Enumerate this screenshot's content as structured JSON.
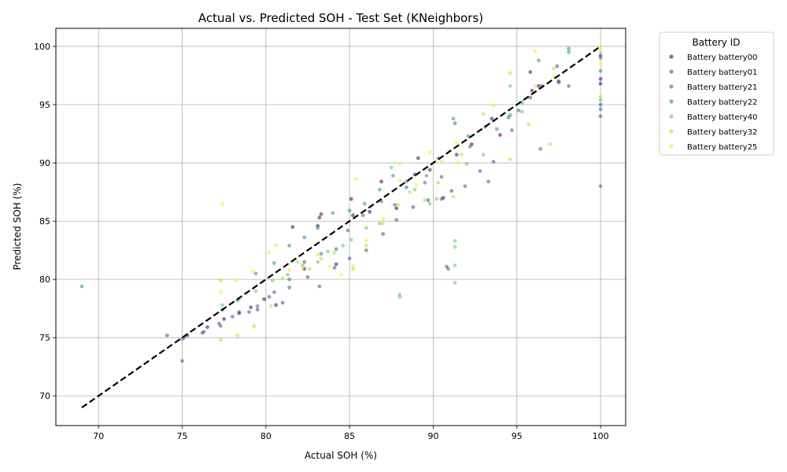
{
  "chart_data": {
    "type": "scatter",
    "title": "Actual vs. Predicted SOH - Test Set (KNeighbors)",
    "xlabel": "Actual SOH (%)",
    "ylabel": "Predicted SOH (%)",
    "xlim": [
      67.45,
      101.5
    ],
    "ylim": [
      67.45,
      101.55
    ],
    "xticks": [
      "70",
      "75",
      "80",
      "85",
      "90",
      "95",
      "100"
    ],
    "yticks": [
      "70",
      "75",
      "80",
      "85",
      "90",
      "95",
      "100"
    ],
    "grid": true,
    "legend_title": "Battery ID",
    "legend_position": "outside-right",
    "reference_line": {
      "style": "dashed",
      "color": "#000000",
      "from": [
        69,
        69
      ],
      "to": [
        100,
        100
      ]
    },
    "series": [
      {
        "name": "Battery battery00",
        "color": "#440154",
        "points": [
          [
            75.3,
            75.2
          ],
          [
            76.5,
            75.9
          ],
          [
            77.5,
            76.6
          ],
          [
            78.4,
            77.1
          ],
          [
            79.1,
            77.6
          ],
          [
            79.9,
            78.3
          ],
          [
            80.6,
            77.8
          ],
          [
            81.6,
            84.5
          ],
          [
            82.3,
            80.9
          ],
          [
            83.1,
            84.6
          ],
          [
            83.2,
            85.3
          ],
          [
            83.3,
            85.6
          ],
          [
            84.2,
            81.3
          ],
          [
            85.1,
            86.9
          ],
          [
            85.2,
            85.5
          ],
          [
            86.2,
            85.8
          ],
          [
            86.9,
            88.4
          ],
          [
            87.8,
            86.1
          ],
          [
            88.9,
            89.0
          ],
          [
            89.1,
            90.4
          ],
          [
            89.8,
            89.4
          ],
          [
            90.6,
            87.0
          ],
          [
            91.4,
            90.7
          ],
          [
            92.3,
            91.6
          ],
          [
            93.5,
            93.8
          ],
          [
            94.0,
            92.4
          ],
          [
            95.8,
            97.8
          ],
          [
            95.9,
            96.2
          ],
          [
            96.3,
            96.6
          ],
          [
            97.5,
            97.0
          ],
          [
            100.0,
            99.2
          ],
          [
            100.0,
            97.2
          ],
          [
            100.0,
            96.8
          ]
        ]
      },
      {
        "name": "Battery battery01",
        "color": "#3b528b",
        "points": [
          [
            74.1,
            75.2
          ],
          [
            75.0,
            73.0
          ],
          [
            75.1,
            75.0
          ],
          [
            76.3,
            75.5
          ],
          [
            77.2,
            76.2
          ],
          [
            78.0,
            76.8
          ],
          [
            79.0,
            77.2
          ],
          [
            79.5,
            77.4
          ],
          [
            80.2,
            78.5
          ],
          [
            81.0,
            78.0
          ],
          [
            81.4,
            79.3
          ],
          [
            82.5,
            80.2
          ],
          [
            83.2,
            79.4
          ],
          [
            84.1,
            81.0
          ],
          [
            85.0,
            81.8
          ],
          [
            86.0,
            82.5
          ],
          [
            87.0,
            83.9
          ],
          [
            87.8,
            85.1
          ],
          [
            88.8,
            86.2
          ],
          [
            89.7,
            86.8
          ],
          [
            90.5,
            86.9
          ],
          [
            91.1,
            87.6
          ],
          [
            91.9,
            88.0
          ],
          [
            92.8,
            89.3
          ],
          [
            93.6,
            90.1
          ],
          [
            94.7,
            92.8
          ],
          [
            95.8,
            95.6
          ],
          [
            96.5,
            96.6
          ],
          [
            97.4,
            98.3
          ],
          [
            100.0,
            94.0
          ],
          [
            100.0,
            95.0
          ]
        ]
      },
      {
        "name": "Battery battery21",
        "color": "#31688e",
        "points": [
          [
            75.0,
            74.9
          ],
          [
            76.2,
            75.4
          ],
          [
            77.3,
            76.0
          ],
          [
            78.4,
            77.2
          ],
          [
            79.5,
            77.7
          ],
          [
            80.5,
            78.9
          ],
          [
            81.4,
            80.0
          ],
          [
            82.3,
            81.5
          ],
          [
            83.3,
            82.2
          ],
          [
            84.2,
            82.6
          ],
          [
            84.9,
            84.2
          ],
          [
            85.8,
            85.5
          ],
          [
            86.9,
            86.7
          ],
          [
            87.7,
            86.4
          ],
          [
            88.4,
            87.9
          ],
          [
            89.5,
            88.3
          ],
          [
            90.5,
            88.8
          ],
          [
            90.8,
            81.1
          ],
          [
            90.9,
            80.9
          ],
          [
            91.3,
            93.4
          ],
          [
            92.2,
            91.4
          ],
          [
            93.3,
            88.4
          ],
          [
            94.5,
            93.9
          ],
          [
            95.1,
            94.5
          ],
          [
            96.4,
            91.2
          ],
          [
            97.5,
            96.9
          ],
          [
            98.1,
            96.6
          ],
          [
            100.0,
            88.0
          ],
          [
            100.0,
            94.6
          ]
        ]
      },
      {
        "name": "Battery battery22",
        "color": "#21918c",
        "points": [
          [
            69.0,
            79.4
          ],
          [
            77.4,
            77.4
          ],
          [
            78.3,
            78.2
          ],
          [
            79.4,
            80.5
          ],
          [
            80.5,
            81.4
          ],
          [
            81.4,
            82.9
          ],
          [
            82.3,
            83.6
          ],
          [
            83.1,
            84.4
          ],
          [
            84.0,
            85.7
          ],
          [
            85.0,
            85.9
          ],
          [
            85.9,
            86.5
          ],
          [
            86.8,
            87.7
          ],
          [
            87.6,
            88.9
          ],
          [
            88.4,
            88.4
          ],
          [
            89.6,
            88.9
          ],
          [
            90.3,
            90.4
          ],
          [
            91.2,
            93.8
          ],
          [
            92.1,
            92.3
          ],
          [
            93.1,
            93.1
          ],
          [
            93.8,
            92.9
          ],
          [
            94.6,
            94.1
          ],
          [
            95.3,
            95.2
          ],
          [
            96.3,
            98.8
          ],
          [
            98.1,
            99.8
          ],
          [
            98.1,
            99.5
          ],
          [
            100.0,
            97.9
          ],
          [
            100.0,
            99.0
          ]
        ]
      },
      {
        "name": "Battery battery40",
        "color": "#5ec962",
        "points": [
          [
            77.4,
            77.8
          ],
          [
            78.4,
            78.3
          ],
          [
            79.4,
            79.0
          ],
          [
            80.4,
            79.9
          ],
          [
            81.3,
            80.4
          ],
          [
            82.2,
            81.2
          ],
          [
            83.1,
            81.5
          ],
          [
            83.7,
            82.4
          ],
          [
            84.6,
            82.9
          ],
          [
            85.1,
            83.4
          ],
          [
            86.0,
            84.4
          ],
          [
            86.8,
            84.8
          ],
          [
            87.5,
            89.6
          ],
          [
            88.0,
            78.7
          ],
          [
            88.0,
            78.5
          ],
          [
            88.9,
            87.7
          ],
          [
            89.8,
            86.5
          ],
          [
            90.2,
            86.9
          ],
          [
            91.3,
            83.3
          ],
          [
            91.3,
            82.8
          ],
          [
            91.3,
            81.2
          ],
          [
            91.3,
            79.7
          ],
          [
            92.0,
            89.9
          ],
          [
            93.0,
            90.7
          ],
          [
            94.6,
            96.6
          ],
          [
            95.3,
            94.4
          ],
          [
            100.0,
            95.4
          ]
        ]
      },
      {
        "name": "Battery battery32",
        "color": "#b5de2b",
        "points": [
          [
            77.3,
            79.9
          ],
          [
            77.3,
            74.8
          ],
          [
            78.3,
            75.2
          ],
          [
            79.3,
            76.0
          ],
          [
            80.3,
            77.7
          ],
          [
            81.0,
            80.1
          ],
          [
            81.9,
            81.5
          ],
          [
            82.6,
            80.9
          ],
          [
            83.3,
            81.8
          ],
          [
            84.1,
            82.3
          ],
          [
            85.2,
            80.9
          ],
          [
            86.0,
            82.9
          ],
          [
            87.0,
            84.8
          ],
          [
            87.9,
            86.4
          ],
          [
            88.6,
            87.5
          ],
          [
            89.5,
            86.8
          ],
          [
            90.3,
            88.3
          ],
          [
            91.2,
            87.1
          ],
          [
            91.7,
            90.7
          ],
          [
            93.0,
            94.2
          ],
          [
            94.6,
            97.7
          ],
          [
            94.6,
            90.3
          ],
          [
            95.7,
            93.3
          ],
          [
            97.0,
            91.6
          ],
          [
            97.2,
            98.1
          ],
          [
            100.0,
            99.5
          ],
          [
            100.0,
            95.7
          ]
        ]
      },
      {
        "name": "Battery battery25",
        "color": "#fde725",
        "points": [
          [
            77.4,
            86.5
          ],
          [
            77.3,
            78.9
          ],
          [
            78.2,
            79.9
          ],
          [
            79.2,
            80.7
          ],
          [
            80.2,
            82.3
          ],
          [
            80.6,
            82.9
          ],
          [
            81.4,
            80.8
          ],
          [
            82.2,
            81.0
          ],
          [
            83.1,
            82.1
          ],
          [
            83.8,
            81.1
          ],
          [
            84.5,
            80.4
          ],
          [
            85.4,
            88.6
          ],
          [
            85.2,
            81.2
          ],
          [
            86.0,
            83.4
          ],
          [
            87.0,
            85.2
          ],
          [
            88.0,
            89.9
          ],
          [
            88.0,
            88.5
          ],
          [
            89.0,
            88.1
          ],
          [
            89.8,
            90.9
          ],
          [
            90.5,
            90.2
          ],
          [
            91.4,
            91.7
          ],
          [
            91.5,
            90.0
          ],
          [
            93.6,
            94.9
          ],
          [
            96.1,
            99.6
          ],
          [
            96.1,
            96.6
          ],
          [
            97.2,
            97.4
          ],
          [
            100.0,
            99.9
          ],
          [
            100.0,
            98.5
          ]
        ]
      }
    ]
  }
}
